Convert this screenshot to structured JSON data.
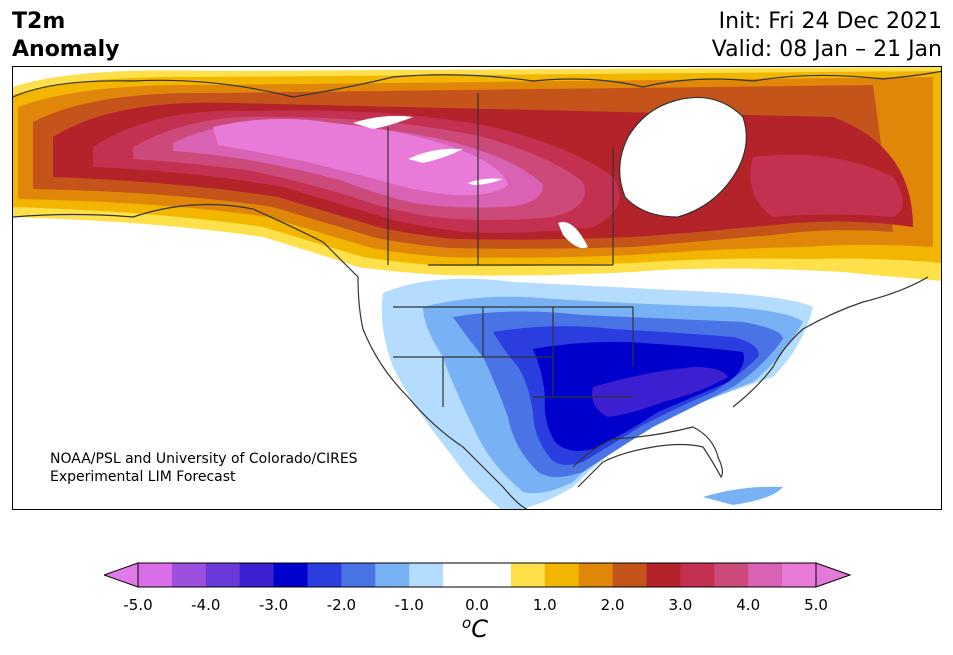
{
  "title": {
    "line1": "T2m",
    "line2": "Anomaly"
  },
  "dates": {
    "init": "Init: Fri 24 Dec 2021",
    "valid": "Valid: 08 Jan – 21 Jan"
  },
  "credit": {
    "line1": "NOAA/PSL and University of Colorado/CIRES",
    "line2": "Experimental LIM Forecast"
  },
  "colorbar": {
    "unit_prefix": "o",
    "unit": "C",
    "tick_labels": [
      "-5.0",
      "-4.0",
      "-3.0",
      "-2.0",
      "-1.0",
      "0.0",
      "1.0",
      "2.0",
      "3.0",
      "4.0",
      "5.0"
    ],
    "colors": [
      "#d96fe6",
      "#9b50de",
      "#6a39dc",
      "#3b1fd0",
      "#0000cc",
      "#2a3ee0",
      "#4a74e6",
      "#78b2f4",
      "#b4dcff",
      "#ffffff",
      "#ffffff",
      "#fde04a",
      "#f2b600",
      "#e0870a",
      "#c4541a",
      "#b4222a",
      "#c43050",
      "#cc4a7a",
      "#da62b4",
      "#e87ad8"
    ],
    "under_color": "#e07ae6",
    "over_color": "#e47ad8"
  }
}
